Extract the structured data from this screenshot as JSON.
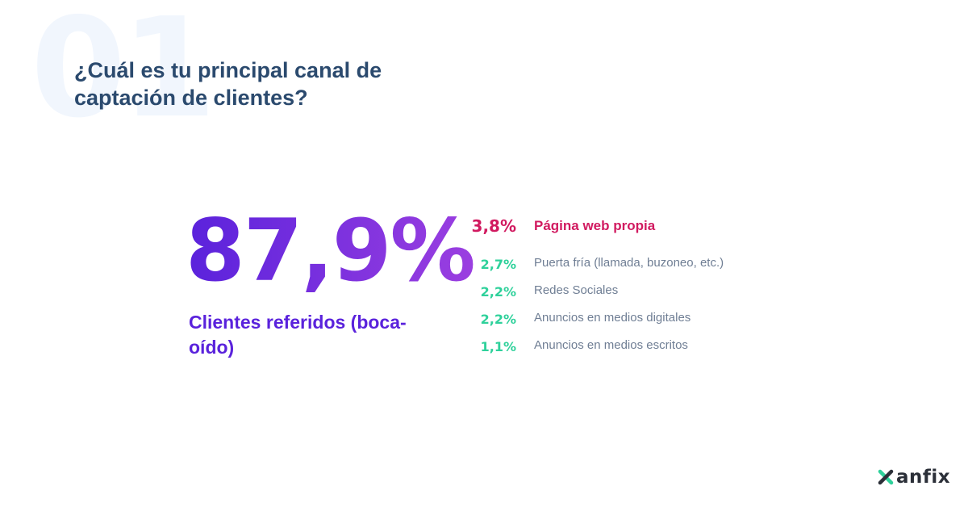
{
  "background_number": "01",
  "title": "¿Cuál es tu principal canal de captación de clientes?",
  "main_stat": {
    "value": "87,9%",
    "label": "Clientes referidos (boca-oído)"
  },
  "items": [
    {
      "value": "3,8%",
      "label": "Página web propia"
    },
    {
      "value": "2,7%",
      "label": "Puerta fría (llamada, buzoneo, etc.)"
    },
    {
      "value": "2,2%",
      "label": "Redes Sociales"
    },
    {
      "value": "2,2%",
      "label": "Anuncios en medios digitales"
    },
    {
      "value": "1,1%",
      "label": "Anuncios en medios escritos"
    }
  ],
  "logo": {
    "text": "anfix"
  },
  "colors": {
    "title": "#2b4a6e",
    "gradient_start": "#5a22dc",
    "gradient_end": "#9b3fe0",
    "highlight": "#d11a60",
    "accent": "#2fd19b",
    "muted": "#6f7e94"
  }
}
